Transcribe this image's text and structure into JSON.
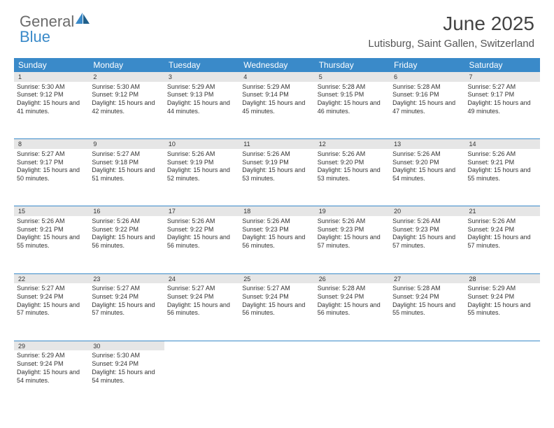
{
  "logo": {
    "general": "General",
    "blue": "Blue"
  },
  "title": "June 2025",
  "location": "Lutisburg, Saint Gallen, Switzerland",
  "colors": {
    "header_bg": "#3a8ac9",
    "header_text": "#ffffff",
    "daynum_bg": "#e6e6e6",
    "border": "#3a8ac9",
    "text": "#333333",
    "logo_gray": "#6b6b6b",
    "logo_blue": "#3a8ac9"
  },
  "weekdays": [
    "Sunday",
    "Monday",
    "Tuesday",
    "Wednesday",
    "Thursday",
    "Friday",
    "Saturday"
  ],
  "weeks": [
    [
      {
        "n": "1",
        "sr": "5:30 AM",
        "ss": "9:12 PM",
        "dl": "15 hours and 41 minutes."
      },
      {
        "n": "2",
        "sr": "5:30 AM",
        "ss": "9:12 PM",
        "dl": "15 hours and 42 minutes."
      },
      {
        "n": "3",
        "sr": "5:29 AM",
        "ss": "9:13 PM",
        "dl": "15 hours and 44 minutes."
      },
      {
        "n": "4",
        "sr": "5:29 AM",
        "ss": "9:14 PM",
        "dl": "15 hours and 45 minutes."
      },
      {
        "n": "5",
        "sr": "5:28 AM",
        "ss": "9:15 PM",
        "dl": "15 hours and 46 minutes."
      },
      {
        "n": "6",
        "sr": "5:28 AM",
        "ss": "9:16 PM",
        "dl": "15 hours and 47 minutes."
      },
      {
        "n": "7",
        "sr": "5:27 AM",
        "ss": "9:17 PM",
        "dl": "15 hours and 49 minutes."
      }
    ],
    [
      {
        "n": "8",
        "sr": "5:27 AM",
        "ss": "9:17 PM",
        "dl": "15 hours and 50 minutes."
      },
      {
        "n": "9",
        "sr": "5:27 AM",
        "ss": "9:18 PM",
        "dl": "15 hours and 51 minutes."
      },
      {
        "n": "10",
        "sr": "5:26 AM",
        "ss": "9:19 PM",
        "dl": "15 hours and 52 minutes."
      },
      {
        "n": "11",
        "sr": "5:26 AM",
        "ss": "9:19 PM",
        "dl": "15 hours and 53 minutes."
      },
      {
        "n": "12",
        "sr": "5:26 AM",
        "ss": "9:20 PM",
        "dl": "15 hours and 53 minutes."
      },
      {
        "n": "13",
        "sr": "5:26 AM",
        "ss": "9:20 PM",
        "dl": "15 hours and 54 minutes."
      },
      {
        "n": "14",
        "sr": "5:26 AM",
        "ss": "9:21 PM",
        "dl": "15 hours and 55 minutes."
      }
    ],
    [
      {
        "n": "15",
        "sr": "5:26 AM",
        "ss": "9:21 PM",
        "dl": "15 hours and 55 minutes."
      },
      {
        "n": "16",
        "sr": "5:26 AM",
        "ss": "9:22 PM",
        "dl": "15 hours and 56 minutes."
      },
      {
        "n": "17",
        "sr": "5:26 AM",
        "ss": "9:22 PM",
        "dl": "15 hours and 56 minutes."
      },
      {
        "n": "18",
        "sr": "5:26 AM",
        "ss": "9:23 PM",
        "dl": "15 hours and 56 minutes."
      },
      {
        "n": "19",
        "sr": "5:26 AM",
        "ss": "9:23 PM",
        "dl": "15 hours and 57 minutes."
      },
      {
        "n": "20",
        "sr": "5:26 AM",
        "ss": "9:23 PM",
        "dl": "15 hours and 57 minutes."
      },
      {
        "n": "21",
        "sr": "5:26 AM",
        "ss": "9:24 PM",
        "dl": "15 hours and 57 minutes."
      }
    ],
    [
      {
        "n": "22",
        "sr": "5:27 AM",
        "ss": "9:24 PM",
        "dl": "15 hours and 57 minutes."
      },
      {
        "n": "23",
        "sr": "5:27 AM",
        "ss": "9:24 PM",
        "dl": "15 hours and 57 minutes."
      },
      {
        "n": "24",
        "sr": "5:27 AM",
        "ss": "9:24 PM",
        "dl": "15 hours and 56 minutes."
      },
      {
        "n": "25",
        "sr": "5:27 AM",
        "ss": "9:24 PM",
        "dl": "15 hours and 56 minutes."
      },
      {
        "n": "26",
        "sr": "5:28 AM",
        "ss": "9:24 PM",
        "dl": "15 hours and 56 minutes."
      },
      {
        "n": "27",
        "sr": "5:28 AM",
        "ss": "9:24 PM",
        "dl": "15 hours and 55 minutes."
      },
      {
        "n": "28",
        "sr": "5:29 AM",
        "ss": "9:24 PM",
        "dl": "15 hours and 55 minutes."
      }
    ],
    [
      {
        "n": "29",
        "sr": "5:29 AM",
        "ss": "9:24 PM",
        "dl": "15 hours and 54 minutes."
      },
      {
        "n": "30",
        "sr": "5:30 AM",
        "ss": "9:24 PM",
        "dl": "15 hours and 54 minutes."
      },
      null,
      null,
      null,
      null,
      null
    ]
  ],
  "labels": {
    "sunrise": "Sunrise:",
    "sunset": "Sunset:",
    "daylight": "Daylight:"
  }
}
